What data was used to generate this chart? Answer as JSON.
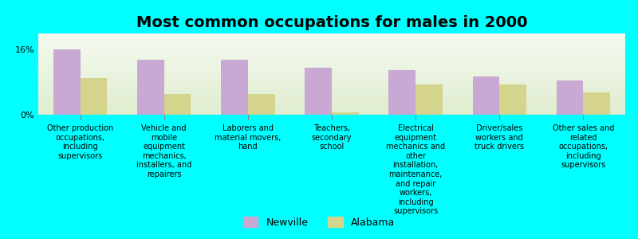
{
  "title": "Most common occupations for males in 2000",
  "background_color": "#00FFFF",
  "plot_bg_top": "#E8F0DC",
  "plot_bg_bottom": "#F8FCF0",
  "categories": [
    "Other production\noccupations,\nincluding\nsupervisors",
    "Vehicle and\nmobile\nequipment\nmechanics,\ninstallers, and\nrepairers",
    "Laborers and\nmaterial movers,\nhand",
    "Teachers,\nsecondary\nschool",
    "Electrical\nequipment\nmechanics and\nother\ninstallation,\nmaintenance,\nand repair\nworkers,\nincluding\nsupervisors",
    "Driver/sales\nworkers and\ntruck drivers",
    "Other sales and\nrelated\noccupations,\nincluding\nsupervisors"
  ],
  "newville_values": [
    16.0,
    13.5,
    13.5,
    11.5,
    11.0,
    9.5,
    8.5
  ],
  "alabama_values": [
    9.0,
    5.0,
    5.0,
    0.5,
    7.5,
    7.5,
    5.5
  ],
  "newville_color": "#C9A8D4",
  "alabama_color": "#D4D48C",
  "ylim": [
    0,
    20
  ],
  "ytick_positions": [
    0,
    16
  ],
  "ytick_labels": [
    "0%",
    "16%"
  ],
  "bar_width": 0.32,
  "legend_newville": "Newville",
  "legend_alabama": "Alabama",
  "title_fontsize": 14,
  "tick_fontsize": 8,
  "label_fontsize": 7
}
